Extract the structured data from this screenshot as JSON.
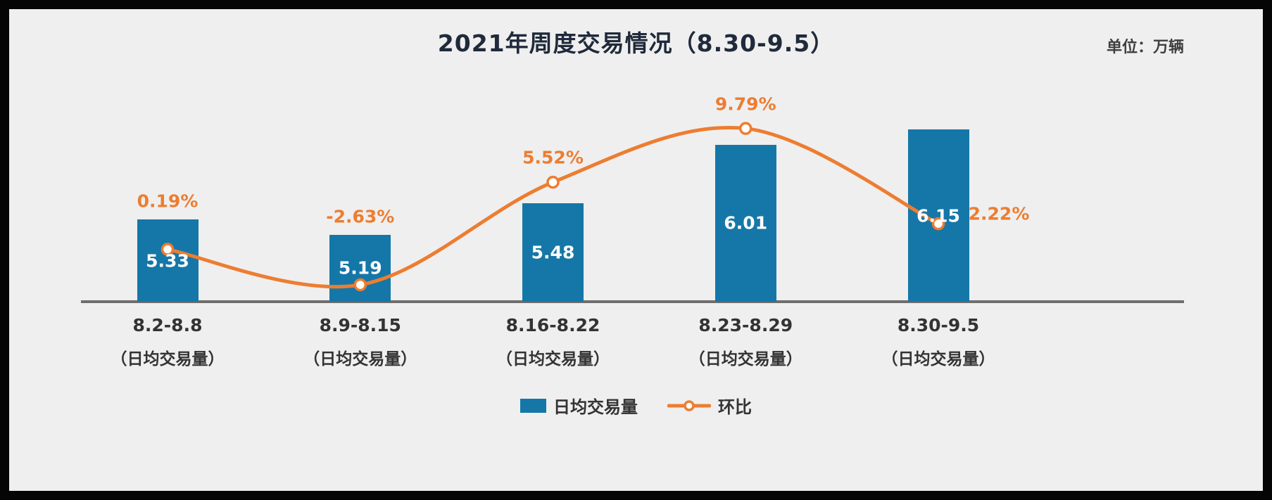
{
  "page": {
    "background": "#efefef",
    "frame_color": "#050505"
  },
  "header": {
    "title": "2021年周度交易情况（8.30-9.5）",
    "unit_label": "单位：万辆"
  },
  "legend": {
    "items": [
      {
        "label": "日均交易量",
        "marker": "bar-swatch"
      },
      {
        "label": "环比",
        "marker": "line-open-circle"
      }
    ]
  },
  "chart_data": {
    "type": "combo",
    "title": "2021年周度交易情况（8.30-9.5）",
    "unit": "万辆",
    "categories": [
      "8.2-8.8",
      "8.9-8.15",
      "8.16-8.22",
      "8.23-8.29",
      "8.30-9.5"
    ],
    "category_sublabel": "（日均交易量）",
    "series": [
      {
        "name": "日均交易量",
        "type": "bar",
        "values": [
          5.33,
          5.19,
          5.48,
          6.01,
          6.15
        ],
        "value_labels": [
          "5.33",
          "5.19",
          "5.48",
          "6.01",
          "6.15"
        ],
        "color": "#1577A7",
        "label_color": "#ffffff"
      },
      {
        "name": "环比",
        "type": "line",
        "values": [
          0.19,
          -2.63,
          5.52,
          9.79,
          2.22
        ],
        "value_labels": [
          "0.19%",
          "-2.63%",
          "5.52%",
          "9.79%",
          "2.22%"
        ],
        "color": "#ED7D31",
        "marker": "open-circle",
        "smooth": true
      }
    ],
    "bar_axis_implied_min": 4.58,
    "grid": false,
    "legend_position": "bottom",
    "label_placement_hints": [
      "above-bar",
      "above-bar",
      "above-marker",
      "above-marker",
      "right-of-marker"
    ]
  }
}
